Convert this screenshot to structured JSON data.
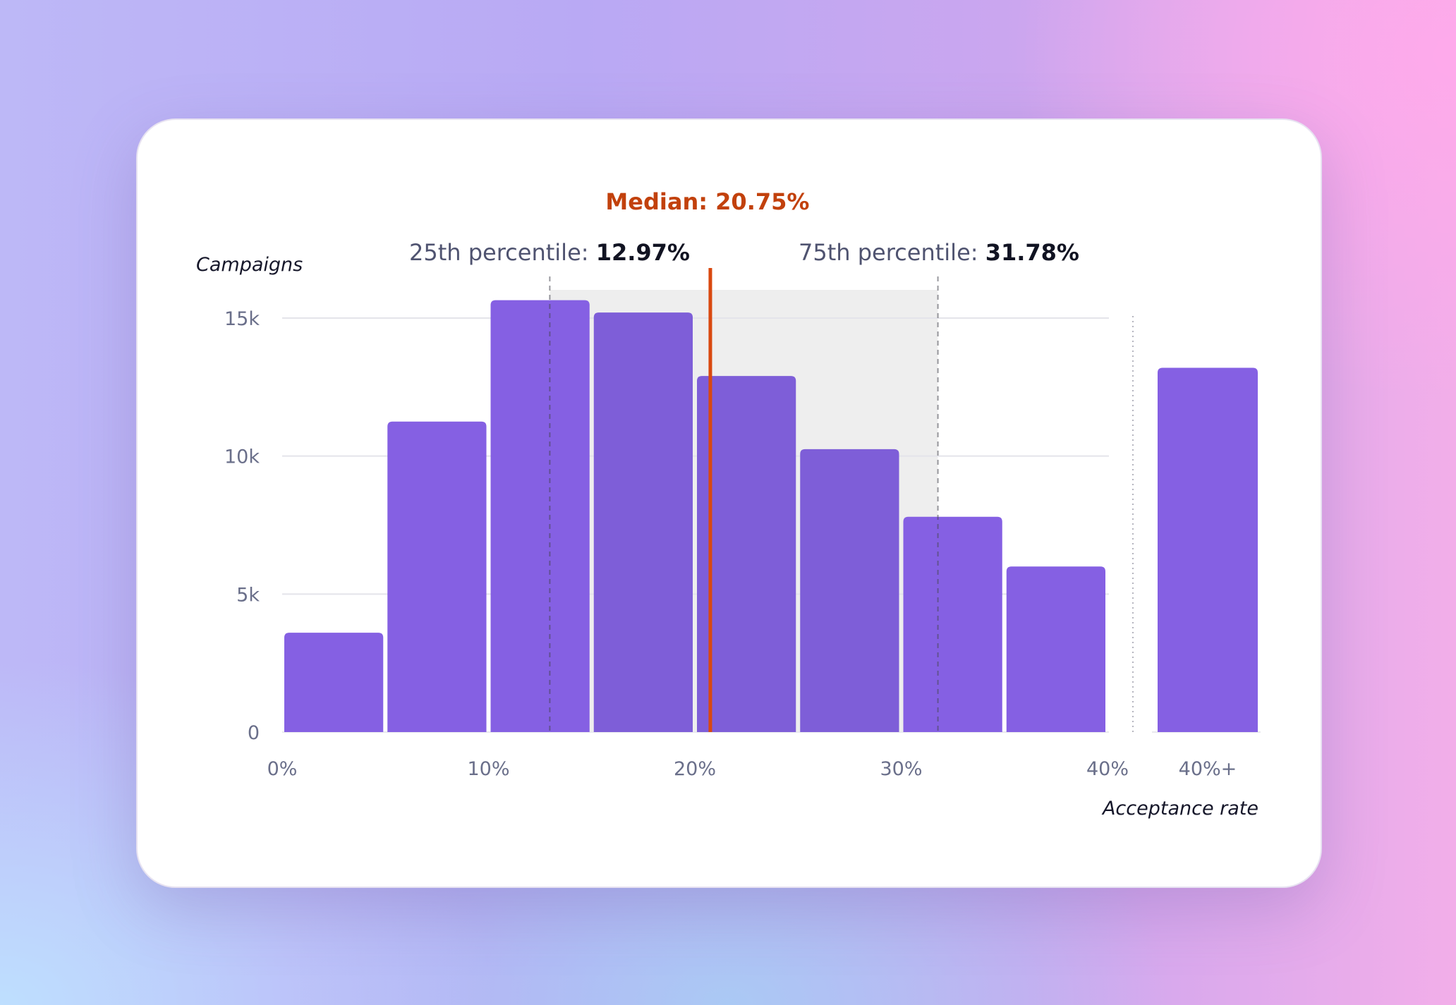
{
  "chart_data": {
    "type": "bar",
    "title": "",
    "ylabel": "Campaigns",
    "xlabel": "Acceptance rate",
    "ylim": [
      0,
      15000
    ],
    "yticks": [
      "0",
      "5k",
      "10k",
      "15k"
    ],
    "ytick_values": [
      0,
      5000,
      10000,
      15000
    ],
    "xticks": [
      "0%",
      "10%",
      "20%",
      "30%",
      "40%"
    ],
    "xtick_values": [
      0,
      10,
      20,
      30,
      40
    ],
    "bins": [
      {
        "from": 0,
        "to": 5,
        "value": 3600
      },
      {
        "from": 5,
        "to": 10,
        "value": 11250
      },
      {
        "from": 10,
        "to": 15,
        "value": 15650
      },
      {
        "from": 15,
        "to": 20,
        "value": 15200
      },
      {
        "from": 20,
        "to": 25,
        "value": 12900
      },
      {
        "from": 25,
        "to": 30,
        "value": 10250
      },
      {
        "from": 30,
        "to": 35,
        "value": 7800
      },
      {
        "from": 35,
        "to": 40,
        "value": 6000
      }
    ],
    "overflow_bin": {
      "label": "40%+",
      "value": 13200
    },
    "median": {
      "label": "Median:",
      "value_text": "20.75%",
      "value": 20.75,
      "color": "#d9480f"
    },
    "p25": {
      "label": "25th percentile:",
      "value_text": "12.97%",
      "value": 12.97
    },
    "p75": {
      "label": "75th percentile:",
      "value_text": "31.78%",
      "value": 31.78
    },
    "bar_color": "#8560e3",
    "bar_color_iqr": "#7e5ed8",
    "iqr_band_color": "#eeeeee",
    "grid": true
  }
}
